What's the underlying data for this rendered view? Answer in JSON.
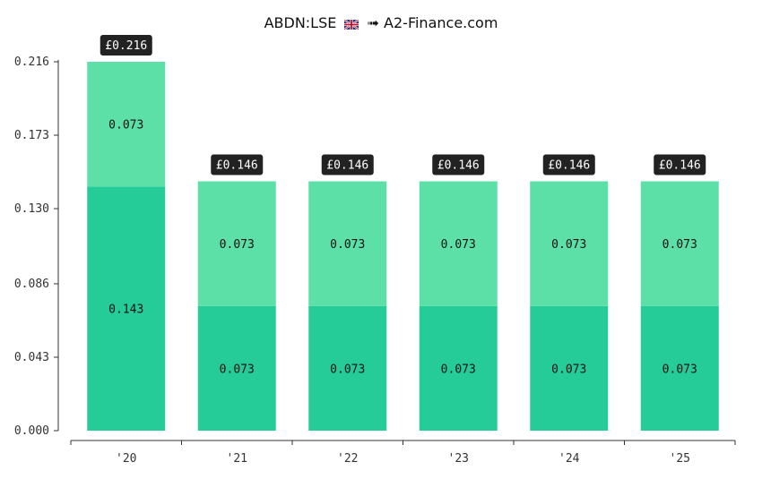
{
  "title": {
    "ticker": "ABDN:LSE",
    "arrow": "➟",
    "source": "A2-Finance.com",
    "flag_icon": "uk-flag-icon"
  },
  "colors": {
    "bottom_segment": "#26cc98",
    "top_segment": "#5ce0a8",
    "total_badge": "#222222",
    "axis": "#333333"
  },
  "chart_data": {
    "type": "bar",
    "stacked": true,
    "categories": [
      "'20",
      "'21",
      "'22",
      "'23",
      "'24",
      "'25"
    ],
    "series": [
      {
        "values": [
          0.143,
          0.073,
          0.073,
          0.073,
          0.073,
          0.073
        ]
      },
      {
        "values": [
          0.073,
          0.073,
          0.073,
          0.073,
          0.073,
          0.073
        ]
      }
    ],
    "segment_labels": [
      [
        "0.143",
        "0.073",
        "0.073",
        "0.073",
        "0.073",
        "0.073"
      ],
      [
        "0.073",
        "0.073",
        "0.073",
        "0.073",
        "0.073",
        "0.073"
      ]
    ],
    "totals": [
      0.216,
      0.146,
      0.146,
      0.146,
      0.146,
      0.146
    ],
    "total_labels": [
      "£0.216",
      "£0.146",
      "£0.146",
      "£0.146",
      "£0.146",
      "£0.146"
    ],
    "yticks": [
      0.0,
      0.043,
      0.086,
      0.13,
      0.173,
      0.216
    ],
    "ytick_labels": [
      "0.000",
      "0.043",
      "0.086",
      "0.130",
      "0.173",
      "0.216"
    ],
    "ylim": [
      0,
      0.216
    ],
    "grid": false,
    "xlabel": "",
    "ylabel": ""
  }
}
